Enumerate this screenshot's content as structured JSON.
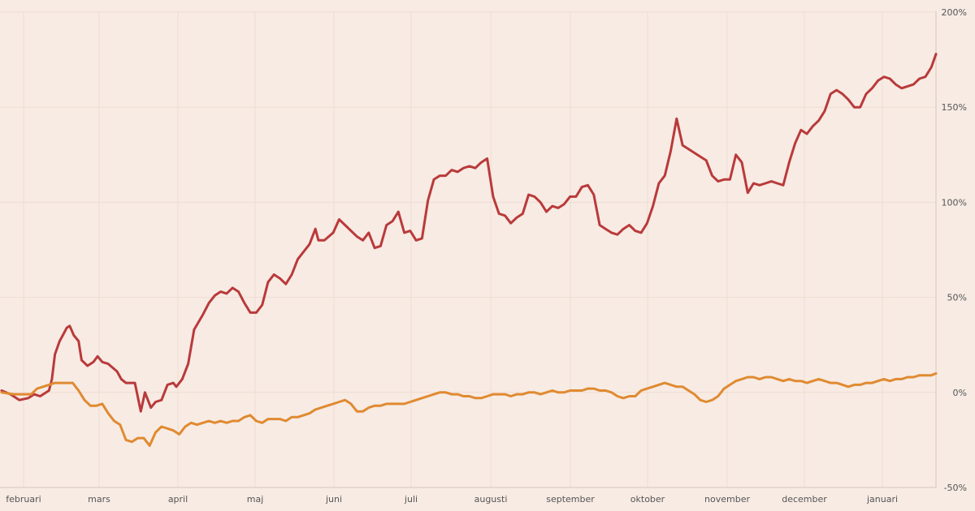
{
  "chart_data": {
    "type": "line",
    "title": "",
    "xlabel": "",
    "ylabel": "",
    "x_tick_labels": [
      "februari",
      "mars",
      "april",
      "maj",
      "juni",
      "juli",
      "augusti",
      "september",
      "oktober",
      "november",
      "december",
      "januari"
    ],
    "y_ticks": [
      -50,
      0,
      50,
      100,
      150,
      200
    ],
    "y_tick_labels": [
      "-50%",
      "0%",
      "50%",
      "100%",
      "150%",
      "200%"
    ],
    "ylim": [
      -50,
      200
    ],
    "grid": true,
    "legend": "none",
    "series": [
      {
        "color": "#b93a3a",
        "points": [
          [
            0,
            1
          ],
          [
            1.5,
            -1
          ],
          [
            3,
            -4
          ],
          [
            4.5,
            -3
          ],
          [
            5.5,
            -1
          ],
          [
            6.5,
            -2
          ],
          [
            8,
            1
          ],
          [
            8.5,
            7
          ],
          [
            9,
            20
          ],
          [
            9.8,
            27
          ],
          [
            10.5,
            31
          ],
          [
            11,
            34
          ],
          [
            11.5,
            35
          ],
          [
            12.2,
            30
          ],
          [
            13,
            27
          ],
          [
            13.5,
            17
          ],
          [
            14.5,
            14
          ],
          [
            15.5,
            16
          ],
          [
            16.2,
            19
          ],
          [
            17,
            16
          ],
          [
            18,
            15
          ],
          [
            19.5,
            11
          ],
          [
            20.2,
            7
          ],
          [
            21,
            5
          ],
          [
            22.5,
            5
          ],
          [
            23.5,
            -10
          ],
          [
            24.2,
            0
          ],
          [
            25.2,
            -8
          ],
          [
            26,
            -5
          ],
          [
            27,
            -4
          ],
          [
            28,
            4
          ],
          [
            29,
            5
          ],
          [
            29.5,
            3
          ],
          [
            30.5,
            7
          ],
          [
            31.5,
            15
          ],
          [
            32.5,
            33
          ],
          [
            34,
            41
          ],
          [
            35,
            47
          ],
          [
            36,
            51
          ],
          [
            37,
            53
          ],
          [
            38,
            52
          ],
          [
            39,
            55
          ],
          [
            40,
            53
          ],
          [
            41,
            47
          ],
          [
            42,
            42
          ],
          [
            43,
            42
          ],
          [
            44,
            46
          ],
          [
            45,
            58
          ],
          [
            46,
            62
          ],
          [
            47,
            60
          ],
          [
            48,
            57
          ],
          [
            49,
            62
          ],
          [
            50,
            70
          ],
          [
            51,
            74
          ],
          [
            52,
            78
          ],
          [
            53,
            86
          ],
          [
            53.5,
            80
          ],
          [
            54.5,
            80
          ],
          [
            56,
            84
          ],
          [
            57,
            91
          ],
          [
            58,
            88
          ],
          [
            59,
            85
          ],
          [
            60,
            82
          ],
          [
            61,
            80
          ],
          [
            62,
            84
          ],
          [
            63,
            76
          ],
          [
            64,
            77
          ],
          [
            65,
            88
          ],
          [
            66,
            90
          ],
          [
            67,
            95
          ],
          [
            68,
            84
          ],
          [
            69,
            85
          ],
          [
            70,
            80
          ],
          [
            71,
            81
          ],
          [
            72,
            101
          ],
          [
            73,
            112
          ],
          [
            74,
            114
          ],
          [
            75,
            114
          ],
          [
            76,
            117
          ],
          [
            77,
            116
          ],
          [
            78,
            118
          ],
          [
            79,
            119
          ],
          [
            80,
            118
          ],
          [
            81,
            121
          ],
          [
            82,
            123
          ],
          [
            83,
            103
          ],
          [
            84,
            94
          ],
          [
            85,
            93
          ],
          [
            86,
            89
          ],
          [
            87,
            92
          ],
          [
            88,
            94
          ],
          [
            89,
            104
          ],
          [
            90,
            103
          ],
          [
            91,
            100
          ],
          [
            92,
            95
          ],
          [
            93,
            98
          ],
          [
            94,
            97
          ],
          [
            95,
            99
          ],
          [
            96,
            103
          ],
          [
            97,
            103
          ],
          [
            98,
            108
          ],
          [
            99,
            109
          ],
          [
            100,
            104
          ],
          [
            101,
            88
          ],
          [
            102,
            86
          ],
          [
            103,
            84
          ],
          [
            104,
            83
          ],
          [
            105,
            86
          ],
          [
            106,
            88
          ],
          [
            107,
            85
          ],
          [
            108,
            84
          ],
          [
            109,
            89
          ],
          [
            110,
            98
          ],
          [
            111,
            110
          ],
          [
            112,
            114
          ],
          [
            113,
            127
          ],
          [
            114,
            144
          ],
          [
            115,
            130
          ],
          [
            116,
            128
          ],
          [
            117,
            126
          ],
          [
            118,
            124
          ],
          [
            119,
            122
          ],
          [
            120,
            114
          ],
          [
            121,
            111
          ],
          [
            122,
            112
          ],
          [
            123,
            112
          ],
          [
            124,
            125
          ],
          [
            125,
            121
          ],
          [
            126,
            105
          ],
          [
            127,
            110
          ],
          [
            128,
            109
          ],
          [
            129,
            110
          ],
          [
            130,
            111
          ],
          [
            131,
            110
          ],
          [
            132,
            109
          ],
          [
            133,
            121
          ],
          [
            134,
            131
          ],
          [
            135,
            138
          ],
          [
            136,
            136
          ],
          [
            137,
            140
          ],
          [
            138,
            143
          ],
          [
            139,
            148
          ],
          [
            140,
            157
          ],
          [
            141,
            159
          ],
          [
            142,
            157
          ],
          [
            143,
            154
          ],
          [
            144,
            150
          ],
          [
            145,
            150
          ],
          [
            146,
            157
          ],
          [
            147,
            160
          ],
          [
            148,
            164
          ],
          [
            149,
            166
          ],
          [
            150,
            165
          ],
          [
            151,
            162
          ],
          [
            152,
            160
          ],
          [
            153,
            161
          ],
          [
            154,
            162
          ],
          [
            155,
            165
          ],
          [
            156,
            166
          ],
          [
            157,
            171
          ],
          [
            157.8,
            178
          ]
        ]
      },
      {
        "color": "#e08a30",
        "points": [
          [
            0,
            0
          ],
          [
            2,
            -1
          ],
          [
            4,
            -1
          ],
          [
            5,
            -1
          ],
          [
            6,
            2
          ],
          [
            7,
            3
          ],
          [
            8,
            4
          ],
          [
            9,
            5
          ],
          [
            10,
            5
          ],
          [
            11,
            5
          ],
          [
            12,
            5
          ],
          [
            13,
            1
          ],
          [
            14,
            -4
          ],
          [
            15,
            -7
          ],
          [
            16,
            -7
          ],
          [
            17,
            -6
          ],
          [
            18,
            -11
          ],
          [
            19,
            -15
          ],
          [
            20,
            -17
          ],
          [
            21,
            -25
          ],
          [
            22,
            -26
          ],
          [
            23,
            -24
          ],
          [
            24,
            -24
          ],
          [
            25,
            -28
          ],
          [
            26,
            -21
          ],
          [
            27,
            -18
          ],
          [
            28,
            -19
          ],
          [
            29,
            -20
          ],
          [
            30,
            -22
          ],
          [
            31,
            -18
          ],
          [
            32,
            -16
          ],
          [
            33,
            -17
          ],
          [
            34,
            -16
          ],
          [
            35,
            -15
          ],
          [
            36,
            -16
          ],
          [
            37,
            -15
          ],
          [
            38,
            -16
          ],
          [
            39,
            -15
          ],
          [
            40,
            -15
          ],
          [
            41,
            -13
          ],
          [
            42,
            -12
          ],
          [
            43,
            -15
          ],
          [
            44,
            -16
          ],
          [
            45,
            -14
          ],
          [
            46,
            -14
          ],
          [
            47,
            -14
          ],
          [
            48,
            -15
          ],
          [
            49,
            -13
          ],
          [
            50,
            -13
          ],
          [
            51,
            -12
          ],
          [
            52,
            -11
          ],
          [
            53,
            -9
          ],
          [
            54,
            -8
          ],
          [
            55,
            -7
          ],
          [
            56,
            -6
          ],
          [
            57,
            -5
          ],
          [
            58,
            -4
          ],
          [
            59,
            -6
          ],
          [
            60,
            -10
          ],
          [
            61,
            -10
          ],
          [
            62,
            -8
          ],
          [
            63,
            -7
          ],
          [
            64,
            -7
          ],
          [
            65,
            -6
          ],
          [
            66,
            -6
          ],
          [
            67,
            -6
          ],
          [
            68,
            -6
          ],
          [
            69,
            -5
          ],
          [
            70,
            -4
          ],
          [
            71,
            -3
          ],
          [
            72,
            -2
          ],
          [
            73,
            -1
          ],
          [
            74,
            0
          ],
          [
            75,
            0
          ],
          [
            76,
            -1
          ],
          [
            77,
            -1
          ],
          [
            78,
            -2
          ],
          [
            79,
            -2
          ],
          [
            80,
            -3
          ],
          [
            81,
            -3
          ],
          [
            82,
            -2
          ],
          [
            83,
            -1
          ],
          [
            84,
            -1
          ],
          [
            85,
            -1
          ],
          [
            86,
            -2
          ],
          [
            87,
            -1
          ],
          [
            88,
            -1
          ],
          [
            89,
            0
          ],
          [
            90,
            0
          ],
          [
            91,
            -1
          ],
          [
            92,
            0
          ],
          [
            93,
            1
          ],
          [
            94,
            0
          ],
          [
            95,
            0
          ],
          [
            96,
            1
          ],
          [
            97,
            1
          ],
          [
            98,
            1
          ],
          [
            99,
            2
          ],
          [
            100,
            2
          ],
          [
            101,
            1
          ],
          [
            102,
            1
          ],
          [
            103,
            0
          ],
          [
            104,
            -2
          ],
          [
            105,
            -3
          ],
          [
            106,
            -2
          ],
          [
            107,
            -2
          ],
          [
            108,
            1
          ],
          [
            109,
            2
          ],
          [
            110,
            3
          ],
          [
            111,
            4
          ],
          [
            112,
            5
          ],
          [
            113,
            4
          ],
          [
            114,
            3
          ],
          [
            115,
            3
          ],
          [
            116,
            1
          ],
          [
            117,
            -1
          ],
          [
            118,
            -4
          ],
          [
            119,
            -5
          ],
          [
            120,
            -4
          ],
          [
            121,
            -2
          ],
          [
            122,
            2
          ],
          [
            123,
            4
          ],
          [
            124,
            6
          ],
          [
            125,
            7
          ],
          [
            126,
            8
          ],
          [
            127,
            8
          ],
          [
            128,
            7
          ],
          [
            129,
            8
          ],
          [
            130,
            8
          ],
          [
            131,
            7
          ],
          [
            132,
            6
          ],
          [
            133,
            7
          ],
          [
            134,
            6
          ],
          [
            135,
            6
          ],
          [
            136,
            5
          ],
          [
            137,
            6
          ],
          [
            138,
            7
          ],
          [
            139,
            6
          ],
          [
            140,
            5
          ],
          [
            141,
            5
          ],
          [
            142,
            4
          ],
          [
            143,
            3
          ],
          [
            144,
            4
          ],
          [
            145,
            4
          ],
          [
            146,
            5
          ],
          [
            147,
            5
          ],
          [
            148,
            6
          ],
          [
            149,
            7
          ],
          [
            150,
            6
          ],
          [
            151,
            7
          ],
          [
            152,
            7
          ],
          [
            153,
            8
          ],
          [
            154,
            8
          ],
          [
            155,
            9
          ],
          [
            156,
            9
          ],
          [
            157,
            9
          ],
          [
            157.8,
            10
          ]
        ]
      }
    ]
  }
}
